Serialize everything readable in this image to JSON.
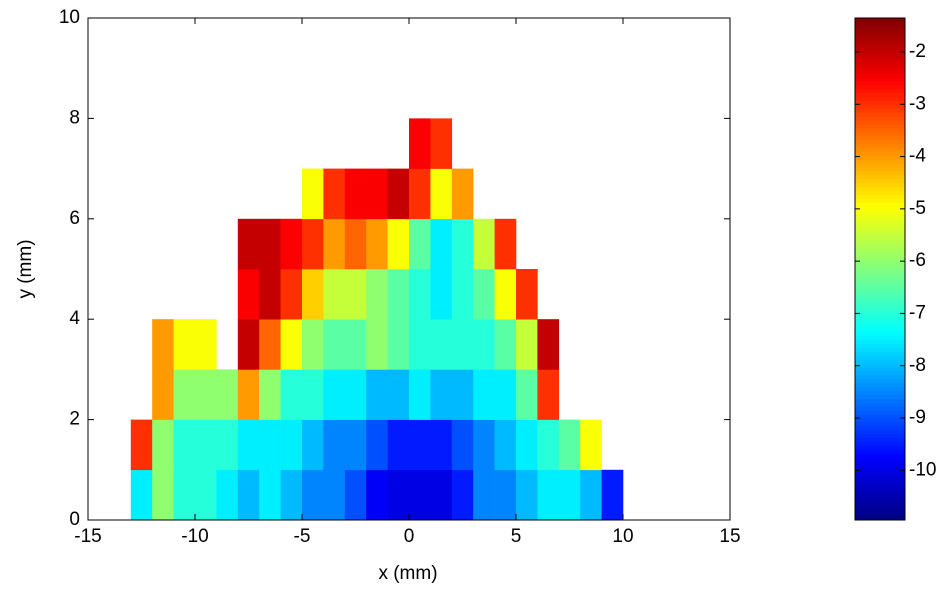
{
  "chart_data": {
    "type": "heatmap",
    "xlabel": "x (mm)",
    "ylabel": "y (mm)",
    "xlim": [
      -15,
      15
    ],
    "ylim": [
      0,
      10
    ],
    "xticks": [
      -15,
      -10,
      -5,
      0,
      5,
      10,
      15
    ],
    "yticks": [
      0,
      2,
      4,
      6,
      8,
      10
    ],
    "colormap": "jet",
    "clim": [
      -10.95,
      -1.35
    ],
    "cticks": [
      -10,
      -9,
      -8,
      -7,
      -6,
      -5,
      -4,
      -3,
      -2
    ],
    "x": [
      -12.5,
      -11.5,
      -10.5,
      -9.5,
      -8.5,
      -7.5,
      -6.5,
      -5.5,
      -4.5,
      -3.5,
      -2.5,
      -1.5,
      -0.5,
      0.5,
      1.5,
      2.5,
      3.5,
      4.5,
      5.5,
      6.5,
      7.5,
      8.5,
      9.5
    ],
    "y": [
      0.5,
      1.5,
      2.5,
      3.5,
      4.5,
      5.5,
      6.5,
      7.5
    ],
    "values": [
      [
        -7.5,
        -6,
        -7,
        -7,
        -7.5,
        -8,
        -7.5,
        -8,
        -8.5,
        -8.5,
        -9,
        -9.8,
        -10,
        -10,
        -10,
        -9.5,
        -8.5,
        -8.5,
        -8,
        -7.5,
        -7.5,
        -8,
        -9.5
      ],
      [
        -3,
        -6,
        -7,
        -7,
        -7,
        -7.5,
        -7.5,
        -7.5,
        -8,
        -8.5,
        -8.5,
        -9,
        -9.5,
        -9.5,
        -9.5,
        -9,
        -8.5,
        -8,
        -7.5,
        -7,
        -6.5,
        -5,
        null
      ],
      [
        null,
        -4,
        -6,
        -6,
        -6,
        -4,
        -6,
        -7,
        -7,
        -7.5,
        -7.5,
        -8,
        -8,
        -7.5,
        -8,
        -8,
        -7.5,
        -7.5,
        -6.5,
        -3,
        null,
        null,
        null
      ],
      [
        null,
        -4,
        -5,
        -5,
        null,
        -2,
        -3.5,
        -5,
        -6,
        -6.5,
        -6.5,
        -6,
        -6.5,
        -7,
        -7,
        -7,
        -7,
        -6.5,
        -5.5,
        -2,
        null,
        null,
        null
      ],
      [
        null,
        null,
        null,
        null,
        null,
        -2.5,
        -2,
        -3,
        -4.5,
        -5.5,
        -5.5,
        -6,
        -6.5,
        -7,
        -7.5,
        -7,
        -6.5,
        -5,
        -3,
        null,
        null,
        null,
        null
      ],
      [
        null,
        null,
        null,
        null,
        null,
        -2,
        -2,
        -2.5,
        -3,
        -4,
        -3.5,
        -4,
        -5,
        -6.5,
        -7.5,
        -7,
        -5.5,
        -3,
        null,
        null,
        null,
        null,
        null
      ],
      [
        null,
        null,
        null,
        null,
        null,
        null,
        null,
        null,
        -5,
        -3,
        -2.5,
        -2.5,
        -2,
        -3,
        -5,
        -4,
        null,
        null,
        null,
        null,
        null,
        null,
        null
      ],
      [
        null,
        null,
        null,
        null,
        null,
        null,
        null,
        null,
        null,
        null,
        null,
        null,
        null,
        -2.5,
        -3,
        null,
        null,
        null,
        null,
        null,
        null,
        null,
        null
      ]
    ]
  }
}
